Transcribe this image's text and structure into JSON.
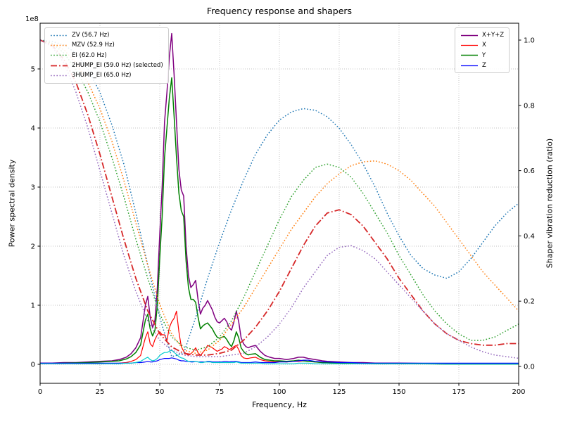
{
  "chart_data": {
    "type": "line",
    "title": "Frequency response and shapers",
    "xlabel": "Frequency, Hz",
    "ylabel_left": "Power spectral density",
    "ylabel_right": "Shaper vibration reduction (ratio)",
    "y_left_offset_text": "1e8",
    "x_range": [
      0,
      200
    ],
    "y_left_range_1e8": [
      0,
      5.77
    ],
    "y_right_range": [
      0,
      1.05
    ],
    "grid": true,
    "x_ticks": [
      "0",
      "25",
      "50",
      "75",
      "100",
      "125",
      "150",
      "175",
      "200"
    ],
    "y_left_ticks": [
      "0",
      "1",
      "2",
      "3",
      "4",
      "5"
    ],
    "y_right_ticks": [
      "0.0",
      "0.2",
      "0.4",
      "0.6",
      "0.8",
      "1.0"
    ],
    "x_psd": [
      0,
      5,
      10,
      15,
      20,
      25,
      30,
      33,
      36,
      38,
      40,
      42,
      44,
      45,
      46,
      47,
      48,
      49,
      50,
      51,
      52,
      53,
      54,
      55,
      56,
      57,
      58,
      59,
      60,
      61,
      62,
      63,
      64,
      65,
      66,
      67,
      68,
      69,
      70,
      71,
      72,
      73,
      74,
      75,
      76,
      77,
      78,
      79,
      80,
      81,
      82,
      83,
      84,
      85,
      86,
      87,
      88,
      90,
      92,
      94,
      96,
      98,
      100,
      103,
      106,
      108,
      110,
      112,
      115,
      118,
      120,
      125,
      130,
      135,
      140,
      145,
      150,
      160,
      170,
      180,
      190,
      200
    ],
    "x_shaper": [
      0,
      5,
      10,
      15,
      20,
      25,
      30,
      35,
      40,
      45,
      50,
      55,
      60,
      65,
      70,
      75,
      80,
      85,
      90,
      95,
      100,
      105,
      110,
      115,
      120,
      125,
      130,
      135,
      140,
      145,
      150,
      155,
      160,
      165,
      170,
      175,
      180,
      185,
      190,
      195,
      200
    ],
    "series": [
      {
        "id": "xyz",
        "label": "X+Y+Z",
        "color": "#800080",
        "dash": "solid",
        "width": 1.5,
        "axis": "left",
        "x_ref": "x_psd",
        "y": [
          0.02,
          0.02,
          0.03,
          0.03,
          0.04,
          0.05,
          0.06,
          0.08,
          0.12,
          0.18,
          0.28,
          0.45,
          1.0,
          1.15,
          0.8,
          0.62,
          0.75,
          1.3,
          2.2,
          3.0,
          4.1,
          4.6,
          5.2,
          5.6,
          4.9,
          4.1,
          3.3,
          2.95,
          2.85,
          2.0,
          1.5,
          1.3,
          1.35,
          1.42,
          1.1,
          0.85,
          0.95,
          1.0,
          1.08,
          1.0,
          0.92,
          0.8,
          0.72,
          0.7,
          0.74,
          0.78,
          0.72,
          0.62,
          0.58,
          0.72,
          0.9,
          0.72,
          0.45,
          0.35,
          0.3,
          0.28,
          0.3,
          0.32,
          0.22,
          0.15,
          0.12,
          0.1,
          0.1,
          0.08,
          0.1,
          0.12,
          0.12,
          0.1,
          0.08,
          0.06,
          0.05,
          0.04,
          0.03,
          0.03,
          0.02,
          0.02,
          0.02,
          0.015,
          0.01,
          0.01,
          0.01,
          0.01
        ]
      },
      {
        "id": "x",
        "label": "X",
        "color": "#ff0000",
        "dash": "solid",
        "width": 1.2,
        "axis": "left",
        "x_ref": "x_psd",
        "y": [
          0.01,
          0.01,
          0.01,
          0.01,
          0.01,
          0.01,
          0.015,
          0.02,
          0.03,
          0.05,
          0.08,
          0.15,
          0.45,
          0.55,
          0.35,
          0.3,
          0.42,
          0.5,
          0.55,
          0.5,
          0.5,
          0.4,
          0.62,
          0.72,
          0.78,
          0.9,
          0.55,
          0.3,
          0.22,
          0.18,
          0.15,
          0.18,
          0.22,
          0.28,
          0.2,
          0.15,
          0.2,
          0.25,
          0.32,
          0.3,
          0.28,
          0.25,
          0.22,
          0.24,
          0.26,
          0.3,
          0.28,
          0.25,
          0.27,
          0.3,
          0.32,
          0.25,
          0.15,
          0.11,
          0.1,
          0.1,
          0.11,
          0.12,
          0.08,
          0.06,
          0.05,
          0.04,
          0.05,
          0.04,
          0.05,
          0.05,
          0.06,
          0.05,
          0.04,
          0.03,
          0.03,
          0.02,
          0.015,
          0.015,
          0.01,
          0.01,
          0.01,
          0.01,
          0.005,
          0.005,
          0.005,
          0.005
        ]
      },
      {
        "id": "y",
        "label": "Y",
        "color": "#008000",
        "dash": "solid",
        "width": 1.5,
        "axis": "left",
        "x_ref": "x_psd",
        "y": [
          0.015,
          0.015,
          0.02,
          0.025,
          0.03,
          0.04,
          0.05,
          0.06,
          0.09,
          0.13,
          0.2,
          0.33,
          0.75,
          0.85,
          0.6,
          0.48,
          0.58,
          1.0,
          1.8,
          2.5,
          3.5,
          4.0,
          4.5,
          4.85,
          4.2,
          3.5,
          2.9,
          2.6,
          2.5,
          1.75,
          1.3,
          1.1,
          1.1,
          1.05,
          0.8,
          0.6,
          0.65,
          0.68,
          0.7,
          0.65,
          0.6,
          0.52,
          0.46,
          0.44,
          0.46,
          0.47,
          0.42,
          0.35,
          0.3,
          0.4,
          0.55,
          0.45,
          0.28,
          0.22,
          0.18,
          0.16,
          0.17,
          0.18,
          0.12,
          0.08,
          0.07,
          0.06,
          0.06,
          0.05,
          0.06,
          0.07,
          0.06,
          0.05,
          0.04,
          0.03,
          0.03,
          0.02,
          0.02,
          0.015,
          0.01,
          0.01,
          0.01,
          0.01,
          0.005,
          0.005,
          0.005,
          0.005
        ]
      },
      {
        "id": "z",
        "label": "Z",
        "color": "#0000ff",
        "dash": "solid",
        "width": 1.2,
        "axis": "left",
        "x_ref": "x_psd",
        "y": [
          0.02,
          0.02,
          0.02,
          0.02,
          0.02,
          0.02,
          0.02,
          0.02,
          0.02,
          0.02,
          0.03,
          0.03,
          0.04,
          0.05,
          0.04,
          0.04,
          0.05,
          0.06,
          0.08,
          0.09,
          0.1,
          0.1,
          0.1,
          0.11,
          0.1,
          0.09,
          0.07,
          0.06,
          0.06,
          0.05,
          0.05,
          0.04,
          0.04,
          0.05,
          0.04,
          0.04,
          0.04,
          0.04,
          0.05,
          0.05,
          0.04,
          0.04,
          0.04,
          0.04,
          0.04,
          0.05,
          0.05,
          0.04,
          0.05,
          0.05,
          0.05,
          0.04,
          0.03,
          0.03,
          0.03,
          0.03,
          0.03,
          0.04,
          0.03,
          0.03,
          0.03,
          0.03,
          0.04,
          0.04,
          0.05,
          0.06,
          0.07,
          0.07,
          0.05,
          0.04,
          0.04,
          0.03,
          0.03,
          0.02,
          0.02,
          0.02,
          0.02,
          0.02,
          0.02,
          0.02,
          0.02,
          0.02
        ]
      },
      {
        "id": "after_shaper",
        "color": "#00cdcd",
        "dash": "solid",
        "width": 1.2,
        "axis": "left",
        "x_ref": "x_psd",
        "y": [
          0.01,
          0.01,
          0.01,
          0.01,
          0.01,
          0.01,
          0.01,
          0.01,
          0.02,
          0.02,
          0.03,
          0.05,
          0.1,
          0.12,
          0.08,
          0.06,
          0.07,
          0.1,
          0.15,
          0.18,
          0.2,
          0.2,
          0.22,
          0.24,
          0.2,
          0.17,
          0.13,
          0.11,
          0.1,
          0.07,
          0.05,
          0.05,
          0.05,
          0.05,
          0.04,
          0.03,
          0.03,
          0.04,
          0.04,
          0.04,
          0.03,
          0.03,
          0.03,
          0.03,
          0.03,
          0.03,
          0.03,
          0.03,
          0.03,
          0.03,
          0.04,
          0.03,
          0.02,
          0.02,
          0.02,
          0.02,
          0.02,
          0.02,
          0.02,
          0.01,
          0.01,
          0.01,
          0.01,
          0.01,
          0.01,
          0.02,
          0.02,
          0.02,
          0.01,
          0.01,
          0.01,
          0.01,
          0.01,
          0.01,
          0.01,
          0.01,
          0.01,
          0.01,
          0.005,
          0.005,
          0.005,
          0.005
        ]
      },
      {
        "id": "zv",
        "label": "ZV (56.7 Hz)",
        "color": "#1f77b4",
        "dash": "dot",
        "width": 1.5,
        "axis": "right",
        "x_ref": "x_shaper",
        "y": [
          1.0,
          0.996,
          0.985,
          0.96,
          0.91,
          0.84,
          0.74,
          0.62,
          0.47,
          0.31,
          0.15,
          0.03,
          0.04,
          0.15,
          0.27,
          0.38,
          0.48,
          0.57,
          0.65,
          0.71,
          0.755,
          0.78,
          0.79,
          0.785,
          0.765,
          0.73,
          0.68,
          0.62,
          0.55,
          0.47,
          0.4,
          0.34,
          0.3,
          0.28,
          0.27,
          0.29,
          0.33,
          0.38,
          0.43,
          0.47,
          0.5
        ]
      },
      {
        "id": "mzv",
        "label": "MZV (52.9 Hz)",
        "color": "#ff7f0e",
        "dash": "dot",
        "width": 1.5,
        "axis": "right",
        "x_ref": "x_shaper",
        "y": [
          1.0,
          0.99,
          0.97,
          0.93,
          0.87,
          0.79,
          0.69,
          0.57,
          0.44,
          0.31,
          0.19,
          0.1,
          0.05,
          0.04,
          0.05,
          0.08,
          0.13,
          0.18,
          0.24,
          0.3,
          0.36,
          0.42,
          0.47,
          0.52,
          0.56,
          0.59,
          0.615,
          0.627,
          0.63,
          0.62,
          0.6,
          0.57,
          0.53,
          0.49,
          0.44,
          0.39,
          0.34,
          0.29,
          0.25,
          0.21,
          0.17
        ]
      },
      {
        "id": "ei",
        "label": "EI (62.0 Hz)",
        "color": "#2ca02c",
        "dash": "dot",
        "width": 1.5,
        "axis": "right",
        "x_ref": "x_shaper",
        "y": [
          1.0,
          0.99,
          0.96,
          0.91,
          0.84,
          0.75,
          0.64,
          0.52,
          0.39,
          0.27,
          0.16,
          0.09,
          0.06,
          0.05,
          0.06,
          0.09,
          0.14,
          0.21,
          0.29,
          0.37,
          0.45,
          0.52,
          0.57,
          0.61,
          0.62,
          0.61,
          0.58,
          0.53,
          0.47,
          0.41,
          0.34,
          0.28,
          0.22,
          0.17,
          0.13,
          0.1,
          0.08,
          0.08,
          0.09,
          0.11,
          0.13
        ]
      },
      {
        "id": "hump2_ei",
        "label": "2HUMP_EI (59.0 Hz) (selected)",
        "color": "#d62728",
        "dash": "dashdot",
        "width": 1.8,
        "axis": "right",
        "x_ref": "x_shaper",
        "y": [
          1.0,
          0.985,
          0.94,
          0.87,
          0.77,
          0.65,
          0.52,
          0.39,
          0.27,
          0.17,
          0.1,
          0.06,
          0.04,
          0.035,
          0.035,
          0.04,
          0.05,
          0.08,
          0.12,
          0.17,
          0.23,
          0.3,
          0.37,
          0.43,
          0.47,
          0.48,
          0.465,
          0.43,
          0.38,
          0.33,
          0.27,
          0.22,
          0.17,
          0.13,
          0.1,
          0.08,
          0.07,
          0.065,
          0.065,
          0.07,
          0.07
        ]
      },
      {
        "id": "hump3_ei",
        "label": "3HUMP_EI (65.0 Hz)",
        "color": "#9467bd",
        "dash": "dot",
        "width": 1.5,
        "axis": "right",
        "x_ref": "x_shaper",
        "y": [
          1.0,
          0.98,
          0.93,
          0.84,
          0.73,
          0.6,
          0.47,
          0.34,
          0.23,
          0.14,
          0.08,
          0.05,
          0.035,
          0.03,
          0.03,
          0.03,
          0.035,
          0.04,
          0.06,
          0.09,
          0.13,
          0.18,
          0.24,
          0.29,
          0.34,
          0.365,
          0.37,
          0.355,
          0.33,
          0.29,
          0.25,
          0.21,
          0.17,
          0.13,
          0.1,
          0.08,
          0.06,
          0.045,
          0.035,
          0.03,
          0.025
        ]
      }
    ],
    "legend_left": {
      "position": "upper left",
      "items": [
        {
          "series": "zv",
          "label": "ZV (56.7 Hz)"
        },
        {
          "series": "mzv",
          "label": "MZV (52.9 Hz)"
        },
        {
          "series": "ei",
          "label": "EI (62.0 Hz)"
        },
        {
          "series": "hump2_ei",
          "label": "2HUMP_EI (59.0 Hz) (selected)"
        },
        {
          "series": "hump3_ei",
          "label": "3HUMP_EI (65.0 Hz)"
        }
      ]
    },
    "legend_right": {
      "position": "upper right",
      "items": [
        {
          "series": "xyz",
          "label": "X+Y+Z"
        },
        {
          "series": "x",
          "label": "X"
        },
        {
          "series": "y",
          "label": "Y"
        },
        {
          "series": "z",
          "label": "Z"
        }
      ]
    }
  }
}
